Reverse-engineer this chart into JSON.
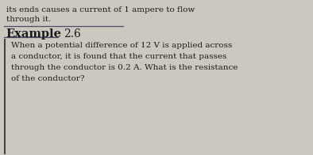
{
  "background_color": "#ccc8c0",
  "top_text_line1": "its ends causes a current of 1 ampere to flow",
  "top_text_line2": "through it.",
  "example_label": "Example",
  "example_number": "2.6",
  "box_text_lines": [
    "When a potential difference of 12 V is applied across",
    "a conductor, it is found that the current that passes",
    "through the conductor is 0.2 A. What is the resistance",
    "of the conductor?"
  ],
  "text_color": "#1c1c1c",
  "example_color": "#1a1a1a",
  "bar_color": "#4a4a6a",
  "box_border_color": "#444444",
  "font_size_top": 7.5,
  "font_size_example_label": 10.5,
  "font_size_example_number": 10.0,
  "font_size_box": 7.5
}
